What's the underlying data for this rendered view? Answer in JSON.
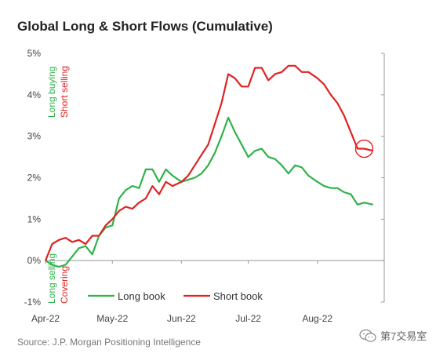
{
  "chart_data": {
    "type": "line",
    "title": "Global Long & Short Flows (Cumulative)",
    "source": "Source: J.P. Morgan Positioning Intelligence",
    "ylim": [
      -1,
      5
    ],
    "y_ticks": [
      "-1%",
      "0%",
      "1%",
      "2%",
      "3%",
      "4%",
      "5%"
    ],
    "x_ticks": [
      "Apr-22",
      "May-22",
      "Jun-22",
      "Jul-22",
      "Aug-22"
    ],
    "grid": false,
    "legend_position": "bottom-center",
    "annotations": {
      "top_long": "Long buying",
      "top_short": "Short selling",
      "bottom_long": "Long selling",
      "bottom_short": "Covering"
    },
    "series": [
      {
        "name": "Long book",
        "color": "#2eb34a",
        "x": [
          "2022-04-01",
          "2022-04-04",
          "2022-04-07",
          "2022-04-10",
          "2022-04-13",
          "2022-04-16",
          "2022-04-19",
          "2022-04-22",
          "2022-04-25",
          "2022-04-28",
          "2022-05-01",
          "2022-05-04",
          "2022-05-07",
          "2022-05-10",
          "2022-05-13",
          "2022-05-16",
          "2022-05-19",
          "2022-05-22",
          "2022-05-25",
          "2022-05-28",
          "2022-06-01",
          "2022-06-04",
          "2022-06-07",
          "2022-06-10",
          "2022-06-13",
          "2022-06-16",
          "2022-06-19",
          "2022-06-22",
          "2022-06-25",
          "2022-06-28",
          "2022-07-01",
          "2022-07-04",
          "2022-07-07",
          "2022-07-10",
          "2022-07-13",
          "2022-07-16",
          "2022-07-19",
          "2022-07-22",
          "2022-07-25",
          "2022-07-28",
          "2022-08-01",
          "2022-08-04",
          "2022-08-07",
          "2022-08-10",
          "2022-08-13",
          "2022-08-16",
          "2022-08-19",
          "2022-08-22",
          "2022-08-26"
        ],
        "values": [
          0.0,
          -0.1,
          -0.15,
          -0.1,
          0.1,
          0.3,
          0.35,
          0.15,
          0.6,
          0.8,
          0.85,
          1.5,
          1.7,
          1.8,
          1.75,
          2.2,
          2.2,
          1.9,
          2.2,
          2.05,
          1.9,
          1.95,
          2.0,
          2.1,
          2.3,
          2.6,
          3.0,
          3.45,
          3.1,
          2.8,
          2.5,
          2.65,
          2.7,
          2.5,
          2.45,
          2.3,
          2.1,
          2.3,
          2.25,
          2.05,
          1.9,
          1.8,
          1.75,
          1.75,
          1.65,
          1.6,
          1.35,
          1.4,
          1.35
        ]
      },
      {
        "name": "Short book",
        "color": "#e02222",
        "x": [
          "2022-04-01",
          "2022-04-04",
          "2022-04-07",
          "2022-04-10",
          "2022-04-13",
          "2022-04-16",
          "2022-04-19",
          "2022-04-22",
          "2022-04-25",
          "2022-04-28",
          "2022-05-01",
          "2022-05-04",
          "2022-05-07",
          "2022-05-10",
          "2022-05-13",
          "2022-05-16",
          "2022-05-19",
          "2022-05-22",
          "2022-05-25",
          "2022-05-28",
          "2022-06-01",
          "2022-06-04",
          "2022-06-07",
          "2022-06-10",
          "2022-06-13",
          "2022-06-16",
          "2022-06-19",
          "2022-06-22",
          "2022-06-25",
          "2022-06-28",
          "2022-07-01",
          "2022-07-04",
          "2022-07-07",
          "2022-07-10",
          "2022-07-13",
          "2022-07-16",
          "2022-07-19",
          "2022-07-22",
          "2022-07-25",
          "2022-07-28",
          "2022-08-01",
          "2022-08-04",
          "2022-08-07",
          "2022-08-10",
          "2022-08-13",
          "2022-08-16",
          "2022-08-19",
          "2022-08-22",
          "2022-08-26"
        ],
        "values": [
          0.0,
          0.4,
          0.5,
          0.55,
          0.45,
          0.5,
          0.4,
          0.6,
          0.6,
          0.85,
          1.0,
          1.2,
          1.3,
          1.25,
          1.4,
          1.5,
          1.8,
          1.6,
          1.9,
          1.8,
          1.9,
          2.05,
          2.3,
          2.55,
          2.8,
          3.3,
          3.8,
          4.5,
          4.4,
          4.2,
          4.2,
          4.65,
          4.65,
          4.35,
          4.5,
          4.55,
          4.7,
          4.7,
          4.55,
          4.55,
          4.4,
          4.25,
          4.0,
          3.8,
          3.5,
          3.1,
          2.7,
          2.7,
          2.65
        ]
      }
    ],
    "highlight": {
      "series": "Short book",
      "x": "2022-08-22",
      "y": 2.7,
      "shape": "circle",
      "color": "#e02222"
    }
  },
  "watermark": {
    "text": "第7交易室"
  }
}
